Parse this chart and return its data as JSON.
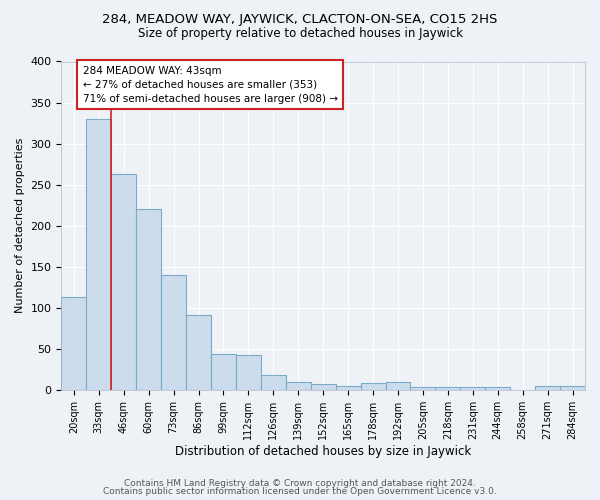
{
  "title": "284, MEADOW WAY, JAYWICK, CLACTON-ON-SEA, CO15 2HS",
  "subtitle": "Size of property relative to detached houses in Jaywick",
  "xlabel": "Distribution of detached houses by size in Jaywick",
  "ylabel": "Number of detached properties",
  "footer_line1": "Contains HM Land Registry data © Crown copyright and database right 2024.",
  "footer_line2": "Contains public sector information licensed under the Open Government Licence v3.0.",
  "categories": [
    "20sqm",
    "33sqm",
    "46sqm",
    "60sqm",
    "73sqm",
    "86sqm",
    "99sqm",
    "112sqm",
    "126sqm",
    "139sqm",
    "152sqm",
    "165sqm",
    "178sqm",
    "192sqm",
    "205sqm",
    "218sqm",
    "231sqm",
    "244sqm",
    "258sqm",
    "271sqm",
    "284sqm"
  ],
  "values": [
    113,
    330,
    263,
    220,
    140,
    91,
    44,
    43,
    18,
    10,
    7,
    5,
    8,
    9,
    3,
    4,
    3,
    3,
    0,
    5,
    5
  ],
  "bar_color": "#ccdcec",
  "bar_edge_color": "#7aaac8",
  "property_line_x": 1.5,
  "annotation_text_line1": "284 MEADOW WAY: 43sqm",
  "annotation_text_line2": "← 27% of detached houses are smaller (353)",
  "annotation_text_line3": "71% of semi-detached houses are larger (908) →",
  "annotation_box_facecolor": "#ffffff",
  "annotation_box_edgecolor": "#cc2222",
  "line_color": "#cc2222",
  "ylim": [
    0,
    400
  ],
  "yticks": [
    0,
    50,
    100,
    150,
    200,
    250,
    300,
    350,
    400
  ],
  "background_color": "#eef2f7",
  "grid_color": "#ffffff",
  "figwidth": 6.0,
  "figheight": 5.0,
  "dpi": 100
}
